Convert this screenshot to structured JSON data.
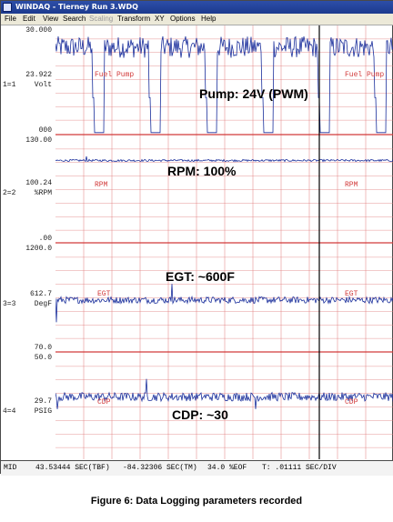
{
  "window": {
    "title": "WINDAQ - Tierney Run 3.WDQ"
  },
  "menu": {
    "items": [
      "File",
      "Edit",
      "View",
      "Search",
      "Scaling",
      "Transform",
      "XY",
      "Options",
      "Help"
    ],
    "disabled": [
      "Scaling"
    ]
  },
  "channels": [
    {
      "id": "1=1",
      "unit": "Volt",
      "top_value": "30.000",
      "mid_value": "23.922",
      "bottom_value": "000",
      "trace_label": "Fuel Pump",
      "annotation": "Pump: 24V (PWM)",
      "ymin": 0,
      "ymax": 30
    },
    {
      "id": "2=2",
      "unit": "%RPM",
      "top_value": "130.00",
      "mid_value": "100.24",
      "bottom_value": ".00",
      "trace_label": "RPM",
      "annotation": "RPM: 100%",
      "ymin": 0,
      "ymax": 130
    },
    {
      "id": "3=3",
      "unit": "DegF",
      "top_value": "1200.0",
      "mid_value": "612.7",
      "bottom_value": "70.0",
      "trace_label": "EGT",
      "annotation": "EGT: ~600F",
      "ymin": 70,
      "ymax": 1200
    },
    {
      "id": "4=4",
      "unit": "PSIG",
      "top_value": "50.0",
      "mid_value": "29.7",
      "bottom_value": "",
      "trace_label": "CDP",
      "annotation": "CDP: ~30",
      "ymin": 0,
      "ymax": 50
    }
  ],
  "status": {
    "mode": "MID",
    "tbf": "43.53444 SEC(TBF)",
    "tm": "-84.32306 SEC(TM)",
    "eof": "34.0 %EOF",
    "t": "T: .01111 SEC/DIV"
  },
  "caption": "Figure 6: Data Logging parameters recorded",
  "colors": {
    "trace": "#1a2f9c",
    "grid": "#e07a7a",
    "separator": "#d23a3a",
    "label": "#d23a3a",
    "cursor": "#000000"
  }
}
